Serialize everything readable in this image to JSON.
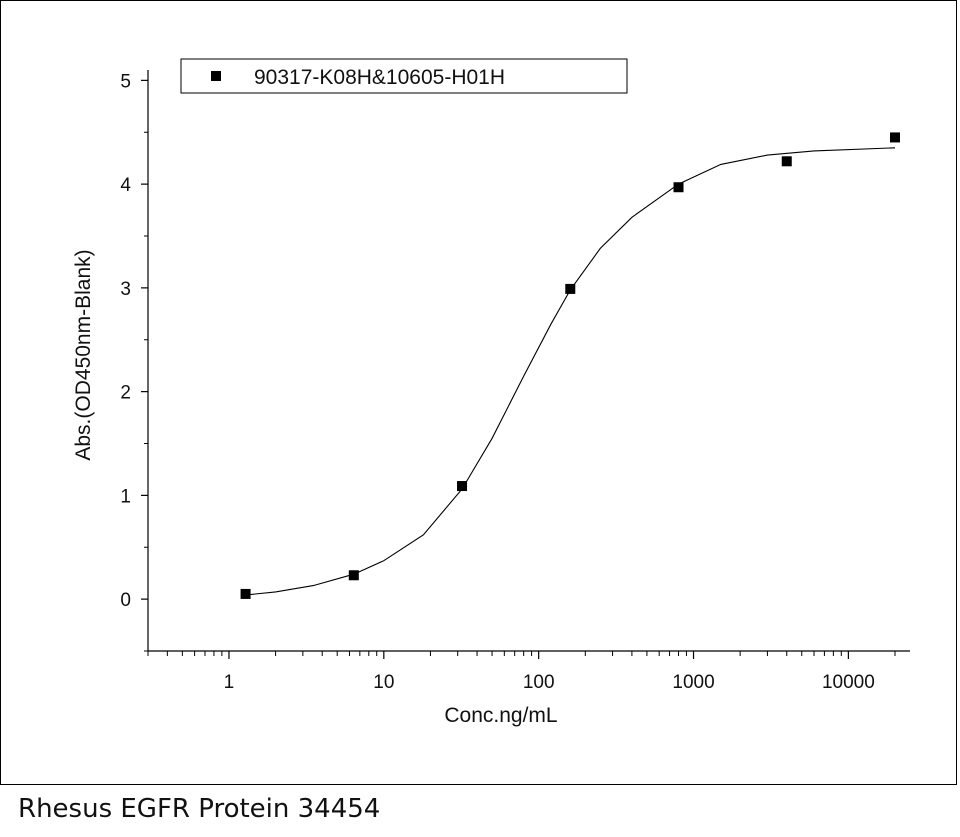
{
  "chart_data": {
    "type": "scatter",
    "xlabel": "Conc.ng/mL",
    "ylabel": "Abs.(OD450nm-Blank)",
    "x_scale": "log",
    "xlim": [
      0.3,
      25000
    ],
    "ylim": [
      -0.5,
      5.1
    ],
    "x_ticks": [
      1,
      10,
      100,
      1000,
      10000
    ],
    "x_tick_labels": [
      "1",
      "10",
      "100",
      "1000",
      "10000"
    ],
    "y_ticks": [
      0,
      1,
      2,
      3,
      4,
      5
    ],
    "y_tick_labels": [
      "0",
      "1",
      "2",
      "3",
      "4",
      "5"
    ],
    "grid": false,
    "legend_position": "top-left",
    "series": [
      {
        "name": "90317-K08H&10605-H01H",
        "marker": "square",
        "color": "#000000",
        "x": [
          1.28,
          6.4,
          32,
          160,
          800,
          4000,
          20000
        ],
        "y": [
          0.05,
          0.23,
          1.09,
          2.99,
          3.97,
          4.22,
          4.45
        ]
      }
    ],
    "fit_curve": {
      "color": "#000000",
      "x": [
        1.28,
        2,
        3.5,
        6.4,
        10,
        18,
        32,
        50,
        80,
        120,
        160,
        250,
        400,
        800,
        1500,
        3000,
        6000,
        20000
      ],
      "y": [
        0.04,
        0.07,
        0.13,
        0.24,
        0.37,
        0.62,
        1.06,
        1.55,
        2.15,
        2.65,
        2.98,
        3.38,
        3.68,
        4.0,
        4.19,
        4.28,
        4.32,
        4.35
      ]
    }
  },
  "caption": "Rhesus EGFR Protein 34454"
}
